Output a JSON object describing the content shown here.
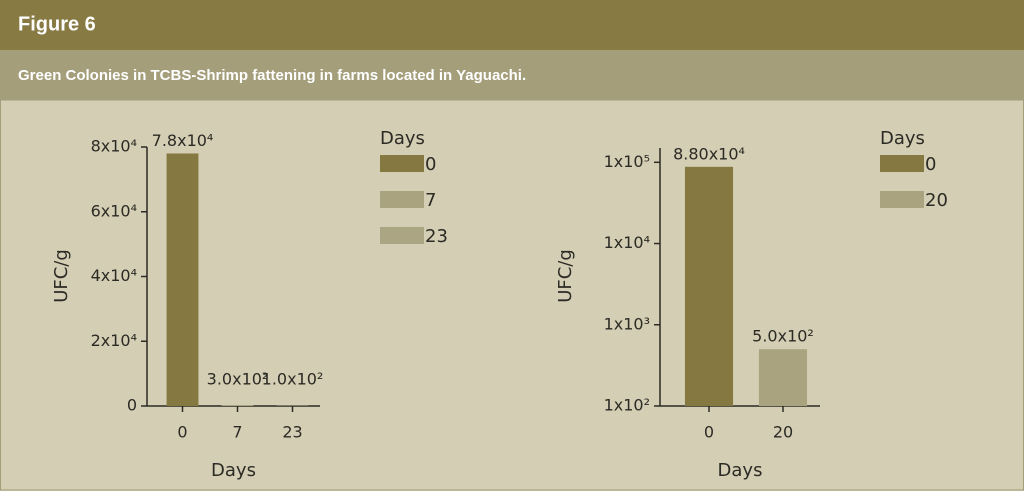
{
  "header": {
    "figure": "Figure 6",
    "subtitle": "Green Colonies in TCBS-Shrimp fattening in farms located in Yaguachi."
  },
  "chart_data": [
    {
      "type": "bar",
      "categories": [
        "0",
        "7",
        "23"
      ],
      "values": [
        78000,
        300,
        100
      ],
      "value_labels": [
        "7.8x10⁴",
        "3.0x10²",
        "1.0x10²"
      ],
      "colors": [
        "#857840",
        "#a9a380",
        "#aba584"
      ],
      "ylim": [
        0,
        80000
      ],
      "yticks": [
        0,
        {
          "value": 20000,
          "label": "2x10⁴"
        },
        {
          "value": 40000,
          "label": "4x10⁴"
        },
        {
          "value": 60000,
          "label": "6x10⁴"
        },
        {
          "value": 80000,
          "label": "8x10⁴"
        }
      ],
      "x_label": "Days",
      "y_label": "UFC/g",
      "legend_title": "Days",
      "log_scale": false
    },
    {
      "type": "bar",
      "categories": [
        "0",
        "20"
      ],
      "values": [
        88000,
        500
      ],
      "value_labels": [
        "8.80x10⁴",
        "5.0x10²"
      ],
      "colors": [
        "#857840",
        "#a9a380"
      ],
      "ylim": [
        100,
        150000
      ],
      "yticks": [
        {
          "value": 100,
          "label": "1x10²"
        },
        {
          "value": 1000,
          "label": "1x10³"
        },
        {
          "value": 10000,
          "label": "1x10⁴"
        },
        {
          "value": 100000,
          "label": "1x10⁵"
        }
      ],
      "x_label": "Days",
      "y_label": "UFC/g",
      "legend_title": "Days",
      "log_scale": true
    }
  ]
}
